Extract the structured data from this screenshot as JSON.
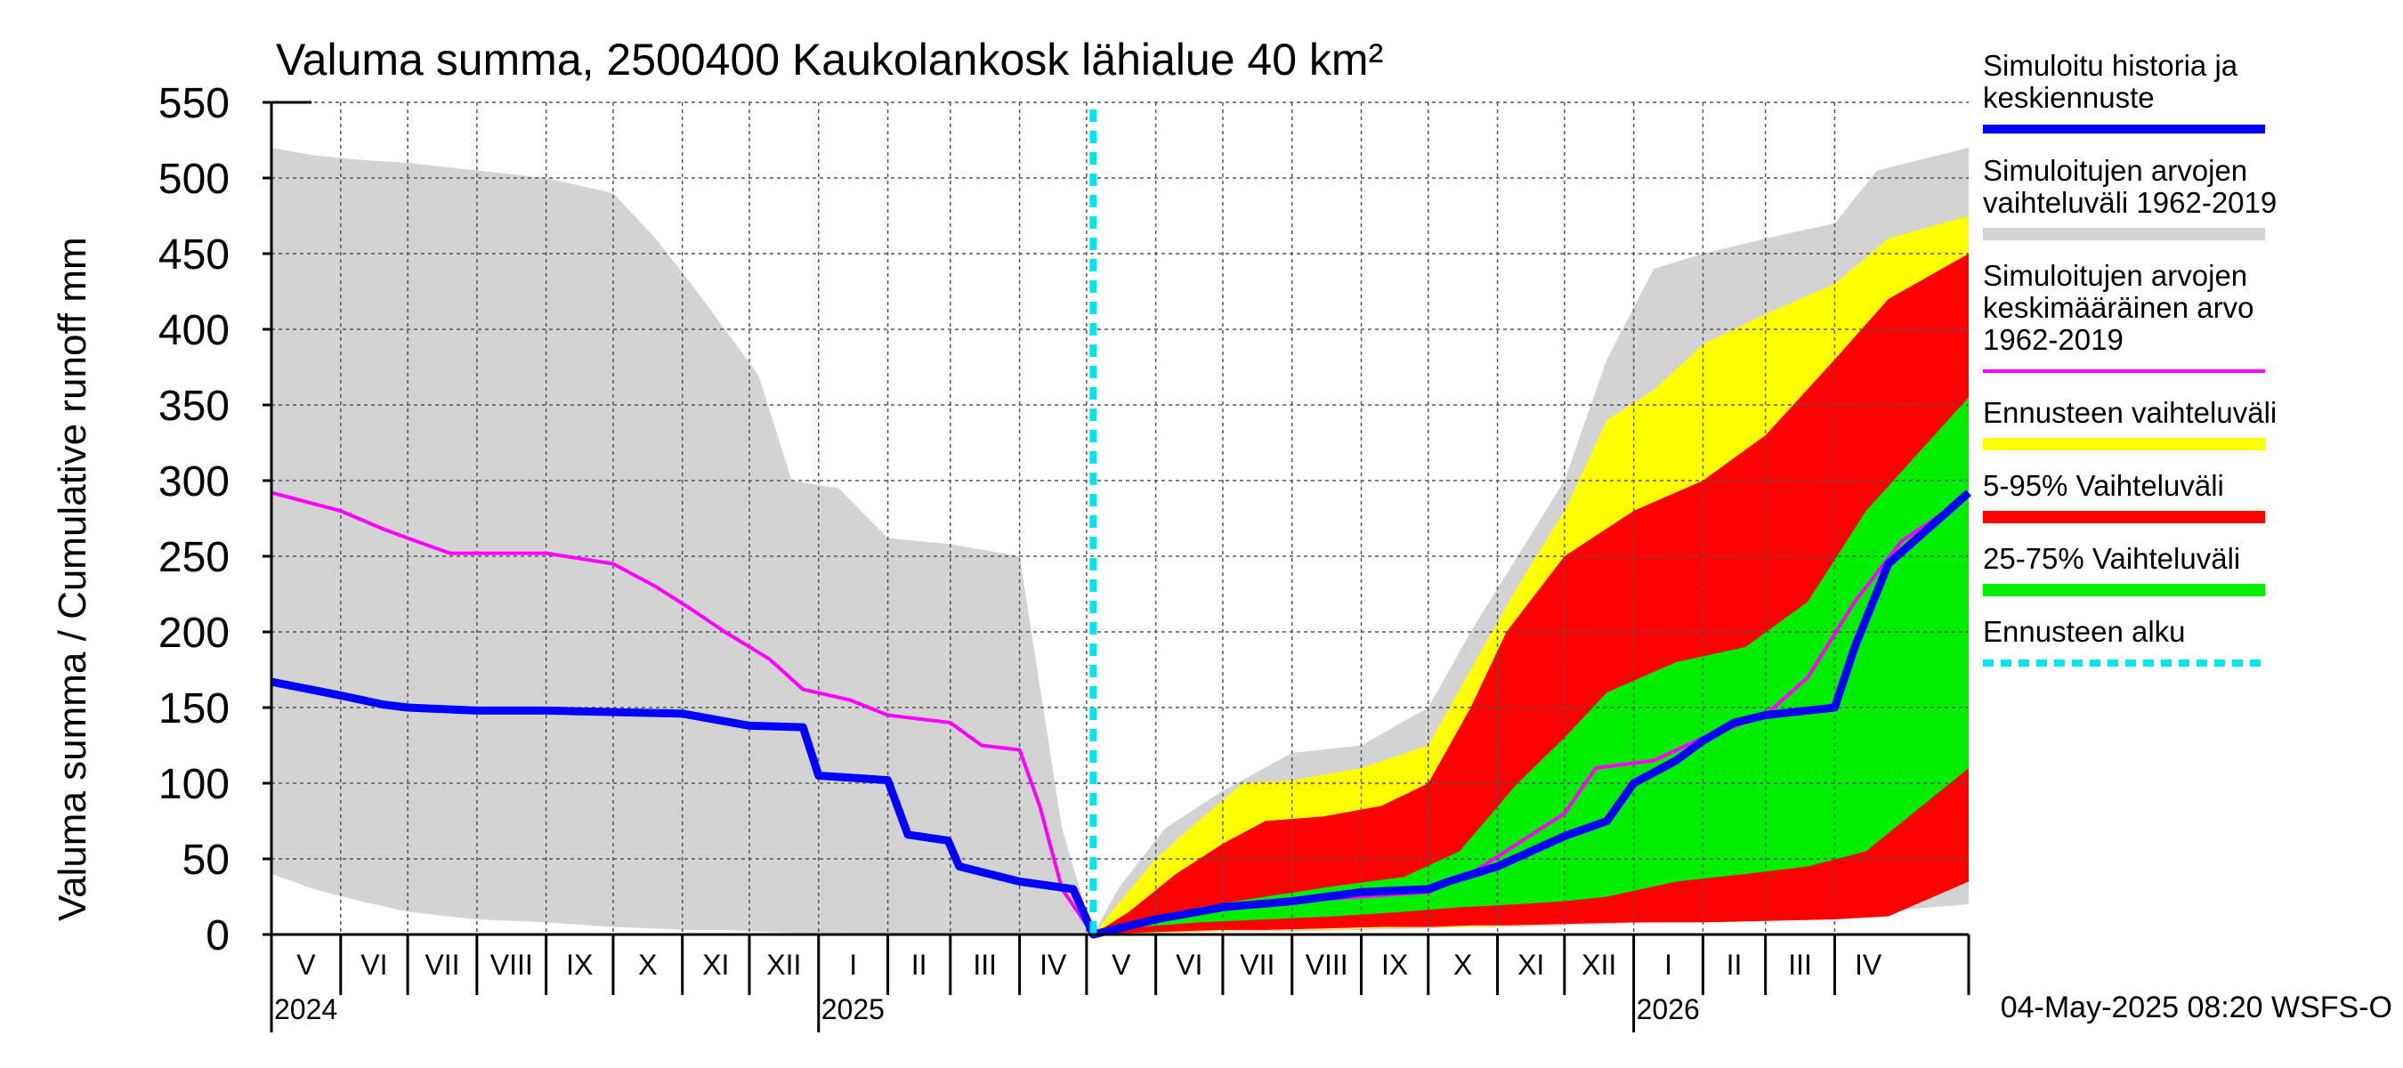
{
  "chart_data": {
    "type": "area",
    "title": "Valuma summa, 2500400 Kaukolankosk lähialue 40 km²",
    "ylabel": "Valuma summa / Cumulative runoff     mm",
    "ylim": [
      0,
      550
    ],
    "yticks": [
      0,
      50,
      100,
      150,
      200,
      250,
      300,
      350,
      400,
      450,
      500,
      550
    ],
    "xlim": [
      "2024-05-01",
      "2026-05-31"
    ],
    "forecast_start": "2025-05-04",
    "months": [
      {
        "label": "V",
        "start": "2024-05-01",
        "end": "2024-06-01"
      },
      {
        "label": "VI",
        "start": "2024-06-01",
        "end": "2024-07-01"
      },
      {
        "label": "VII",
        "start": "2024-07-01",
        "end": "2024-08-01"
      },
      {
        "label": "VIII",
        "start": "2024-08-01",
        "end": "2024-09-01"
      },
      {
        "label": "IX",
        "start": "2024-09-01",
        "end": "2024-10-01"
      },
      {
        "label": "X",
        "start": "2024-10-01",
        "end": "2024-11-01"
      },
      {
        "label": "XI",
        "start": "2024-11-01",
        "end": "2024-12-01"
      },
      {
        "label": "XII",
        "start": "2024-12-01",
        "end": "2025-01-01"
      },
      {
        "label": "I",
        "start": "2025-01-01",
        "end": "2025-02-01"
      },
      {
        "label": "II",
        "start": "2025-02-01",
        "end": "2025-03-01"
      },
      {
        "label": "III",
        "start": "2025-03-01",
        "end": "2025-04-01"
      },
      {
        "label": "IV",
        "start": "2025-04-01",
        "end": "2025-05-01"
      },
      {
        "label": "V",
        "start": "2025-05-01",
        "end": "2025-06-01"
      },
      {
        "label": "VI",
        "start": "2025-06-01",
        "end": "2025-07-01"
      },
      {
        "label": "VII",
        "start": "2025-07-01",
        "end": "2025-08-01"
      },
      {
        "label": "VIII",
        "start": "2025-08-01",
        "end": "2025-09-01"
      },
      {
        "label": "IX",
        "start": "2025-09-01",
        "end": "2025-10-01"
      },
      {
        "label": "X",
        "start": "2025-10-01",
        "end": "2025-11-01"
      },
      {
        "label": "XI",
        "start": "2025-11-01",
        "end": "2025-12-01"
      },
      {
        "label": "XII",
        "start": "2025-12-01",
        "end": "2026-01-01"
      },
      {
        "label": "I",
        "start": "2026-01-01",
        "end": "2026-02-01"
      },
      {
        "label": "II",
        "start": "2026-02-01",
        "end": "2026-03-01"
      },
      {
        "label": "III",
        "start": "2026-03-01",
        "end": "2026-04-01"
      },
      {
        "label": "IV",
        "start": "2026-04-01",
        "end": "2026-05-01"
      }
    ],
    "years": [
      {
        "label": "2024",
        "date": "2024-05-01"
      },
      {
        "label": "2025",
        "date": "2025-01-01"
      },
      {
        "label": "2026",
        "date": "2026-01-01"
      }
    ],
    "bands": [
      {
        "name": "Simuloitujen arvojen vaihteluväli 1962-2019",
        "color": "#d3d3d3",
        "points": [
          [
            "2024-05-01",
            40,
            520
          ],
          [
            "2024-05-20",
            30,
            515
          ],
          [
            "2024-06-10",
            22,
            512
          ],
          [
            "2024-07-01",
            15,
            510
          ],
          [
            "2024-08-01",
            10,
            505
          ],
          [
            "2024-09-01",
            8,
            500
          ],
          [
            "2024-10-01",
            5,
            490
          ],
          [
            "2024-10-20",
            4,
            460
          ],
          [
            "2024-11-05",
            3,
            430
          ],
          [
            "2024-11-20",
            3,
            400
          ],
          [
            "2024-12-05",
            2,
            370
          ],
          [
            "2024-12-20",
            1,
            300
          ],
          [
            "2025-01-10",
            1,
            295
          ],
          [
            "2025-02-01",
            0,
            262
          ],
          [
            "2025-03-01",
            0,
            258
          ],
          [
            "2025-04-01",
            0,
            250
          ],
          [
            "2025-04-20",
            0,
            70
          ],
          [
            "2025-05-04",
            0,
            0
          ],
          [
            "2025-05-15",
            0,
            30
          ],
          [
            "2025-06-05",
            1,
            70
          ],
          [
            "2025-07-01",
            2,
            95
          ],
          [
            "2025-08-01",
            2,
            120
          ],
          [
            "2025-09-01",
            3,
            125
          ],
          [
            "2025-10-01",
            4,
            150
          ],
          [
            "2025-10-20",
            5,
            200
          ],
          [
            "2025-11-10",
            5,
            250
          ],
          [
            "2025-12-01",
            6,
            300
          ],
          [
            "2025-12-20",
            7,
            380
          ],
          [
            "2026-01-10",
            8,
            440
          ],
          [
            "2026-02-01",
            9,
            450
          ],
          [
            "2026-03-01",
            10,
            460
          ],
          [
            "2026-04-01",
            12,
            470
          ],
          [
            "2026-04-20",
            15,
            505
          ],
          [
            "2026-05-31",
            20,
            520
          ]
        ]
      },
      {
        "name": "Ennusteen vaihteluväli",
        "color": "#ffff00",
        "points": [
          [
            "2025-05-04",
            0,
            0
          ],
          [
            "2025-05-15",
            0,
            20
          ],
          [
            "2025-06-01",
            1,
            50
          ],
          [
            "2025-06-20",
            2,
            75
          ],
          [
            "2025-07-10",
            3,
            100
          ],
          [
            "2025-08-01",
            3,
            102
          ],
          [
            "2025-09-01",
            4,
            110
          ],
          [
            "2025-10-01",
            5,
            125
          ],
          [
            "2025-10-20",
            5,
            175
          ],
          [
            "2025-11-10",
            6,
            230
          ],
          [
            "2025-12-01",
            7,
            280
          ],
          [
            "2025-12-20",
            8,
            340
          ],
          [
            "2026-01-10",
            10,
            360
          ],
          [
            "2026-02-01",
            10,
            390
          ],
          [
            "2026-03-01",
            11,
            410
          ],
          [
            "2026-04-01",
            12,
            430
          ],
          [
            "2026-04-25",
            15,
            460
          ],
          [
            "2026-05-31",
            40,
            475
          ]
        ]
      },
      {
        "name": "5-95% Vaihteluväli",
        "color": "#ff0000",
        "points": [
          [
            "2025-05-04",
            0,
            0
          ],
          [
            "2025-05-20",
            1,
            15
          ],
          [
            "2025-06-10",
            2,
            40
          ],
          [
            "2025-07-01",
            3,
            60
          ],
          [
            "2025-07-20",
            3,
            75
          ],
          [
            "2025-08-15",
            4,
            78
          ],
          [
            "2025-09-10",
            5,
            85
          ],
          [
            "2025-10-01",
            5,
            100
          ],
          [
            "2025-10-20",
            6,
            150
          ],
          [
            "2025-11-05",
            6,
            200
          ],
          [
            "2025-12-01",
            7,
            250
          ],
          [
            "2026-01-01",
            8,
            280
          ],
          [
            "2026-02-01",
            8,
            300
          ],
          [
            "2026-03-01",
            9,
            330
          ],
          [
            "2026-04-01",
            10,
            380
          ],
          [
            "2026-04-25",
            12,
            420
          ],
          [
            "2026-05-31",
            35,
            450
          ]
        ]
      },
      {
        "name": "25-75% Vaihteluväli",
        "color": "#00ee00",
        "points": [
          [
            "2025-05-04",
            0,
            0
          ],
          [
            "2025-05-25",
            5,
            8
          ],
          [
            "2025-06-20",
            8,
            18
          ],
          [
            "2025-07-20",
            10,
            25
          ],
          [
            "2025-08-20",
            12,
            32
          ],
          [
            "2025-09-20",
            15,
            38
          ],
          [
            "2025-10-15",
            18,
            55
          ],
          [
            "2025-11-10",
            20,
            100
          ],
          [
            "2025-12-01",
            22,
            130
          ],
          [
            "2025-12-20",
            25,
            160
          ],
          [
            "2026-01-20",
            35,
            180
          ],
          [
            "2026-02-20",
            40,
            190
          ],
          [
            "2026-03-20",
            45,
            220
          ],
          [
            "2026-04-15",
            55,
            280
          ],
          [
            "2026-05-31",
            110,
            355
          ]
        ]
      }
    ],
    "series": [
      {
        "name": "Simuloitujen arvojen keskimääräinen arvo 1962-2019",
        "color": "#ff00ff",
        "width": 4,
        "points": [
          [
            "2024-05-01",
            292
          ],
          [
            "2024-06-01",
            280
          ],
          [
            "2024-06-20",
            268
          ],
          [
            "2024-07-01",
            262
          ],
          [
            "2024-07-20",
            252
          ],
          [
            "2024-08-01",
            252
          ],
          [
            "2024-09-01",
            252
          ],
          [
            "2024-10-01",
            245
          ],
          [
            "2024-10-20",
            230
          ],
          [
            "2024-11-05",
            215
          ],
          [
            "2024-11-20",
            200
          ],
          [
            "2024-12-10",
            182
          ],
          [
            "2024-12-25",
            162
          ],
          [
            "2025-01-15",
            155
          ],
          [
            "2025-02-01",
            145
          ],
          [
            "2025-03-01",
            140
          ],
          [
            "2025-03-15",
            125
          ],
          [
            "2025-04-01",
            122
          ],
          [
            "2025-04-10",
            85
          ],
          [
            "2025-04-20",
            30
          ],
          [
            "2025-05-04",
            0
          ],
          [
            "2025-06-01",
            10
          ],
          [
            "2025-07-01",
            18
          ],
          [
            "2025-08-01",
            22
          ],
          [
            "2025-09-01",
            25
          ],
          [
            "2025-10-01",
            28
          ],
          [
            "2025-10-20",
            40
          ],
          [
            "2025-11-10",
            60
          ],
          [
            "2025-12-01",
            80
          ],
          [
            "2025-12-15",
            110
          ],
          [
            "2026-01-10",
            115
          ],
          [
            "2026-02-01",
            130
          ],
          [
            "2026-03-01",
            145
          ],
          [
            "2026-03-20",
            170
          ],
          [
            "2026-04-10",
            220
          ],
          [
            "2026-05-01",
            260
          ],
          [
            "2026-05-31",
            290
          ]
        ]
      },
      {
        "name": "Simuloitu historia ja keskiennuste",
        "color": "#0000ff",
        "width": 9,
        "points": [
          [
            "2024-05-01",
            167
          ],
          [
            "2024-06-01",
            158
          ],
          [
            "2024-06-20",
            152
          ],
          [
            "2024-07-01",
            150
          ],
          [
            "2024-08-01",
            148
          ],
          [
            "2024-09-01",
            148
          ],
          [
            "2024-10-01",
            147
          ],
          [
            "2024-11-01",
            146
          ],
          [
            "2024-12-01",
            138
          ],
          [
            "2024-12-25",
            137
          ],
          [
            "2025-01-01",
            105
          ],
          [
            "2025-02-01",
            102
          ],
          [
            "2025-02-10",
            66
          ],
          [
            "2025-02-28",
            62
          ],
          [
            "2025-03-05",
            45
          ],
          [
            "2025-04-01",
            35
          ],
          [
            "2025-04-25",
            30
          ],
          [
            "2025-05-04",
            0
          ],
          [
            "2025-06-01",
            10
          ],
          [
            "2025-07-01",
            18
          ],
          [
            "2025-08-01",
            22
          ],
          [
            "2025-09-01",
            28
          ],
          [
            "2025-10-01",
            30
          ],
          [
            "2025-10-10",
            35
          ],
          [
            "2025-11-01",
            45
          ],
          [
            "2025-12-01",
            65
          ],
          [
            "2025-12-20",
            75
          ],
          [
            "2026-01-01",
            100
          ],
          [
            "2026-01-20",
            115
          ],
          [
            "2026-02-01",
            128
          ],
          [
            "2026-02-15",
            140
          ],
          [
            "2026-03-01",
            145
          ],
          [
            "2026-04-01",
            150
          ],
          [
            "2026-04-10",
            190
          ],
          [
            "2026-04-25",
            245
          ],
          [
            "2026-05-31",
            292
          ]
        ]
      }
    ],
    "legend": [
      {
        "label": "Simuloitu historia ja keskiennuste",
        "color": "#0000ff",
        "style": "line"
      },
      {
        "label": "Simuloitujen arvojen vaihteluväli 1962-2019",
        "color": "#d3d3d3",
        "style": "band"
      },
      {
        "label": "Simuloitujen arvojen keskimääräinen arvo 1962-2019",
        "color": "#ff00ff",
        "style": "thin"
      },
      {
        "label": "Ennusteen vaihteluväli",
        "color": "#ffff00",
        "style": "band"
      },
      {
        "label": "5-95% Vaihteluväli",
        "color": "#ff0000",
        "style": "band"
      },
      {
        "label": "25-75% Vaihteluväli",
        "color": "#00ee00",
        "style": "band"
      },
      {
        "label": "Ennusteen alku",
        "color": "#00e5ee",
        "style": "dashed"
      }
    ],
    "footer": "04-May-2025 08:20 WSFS-O"
  }
}
